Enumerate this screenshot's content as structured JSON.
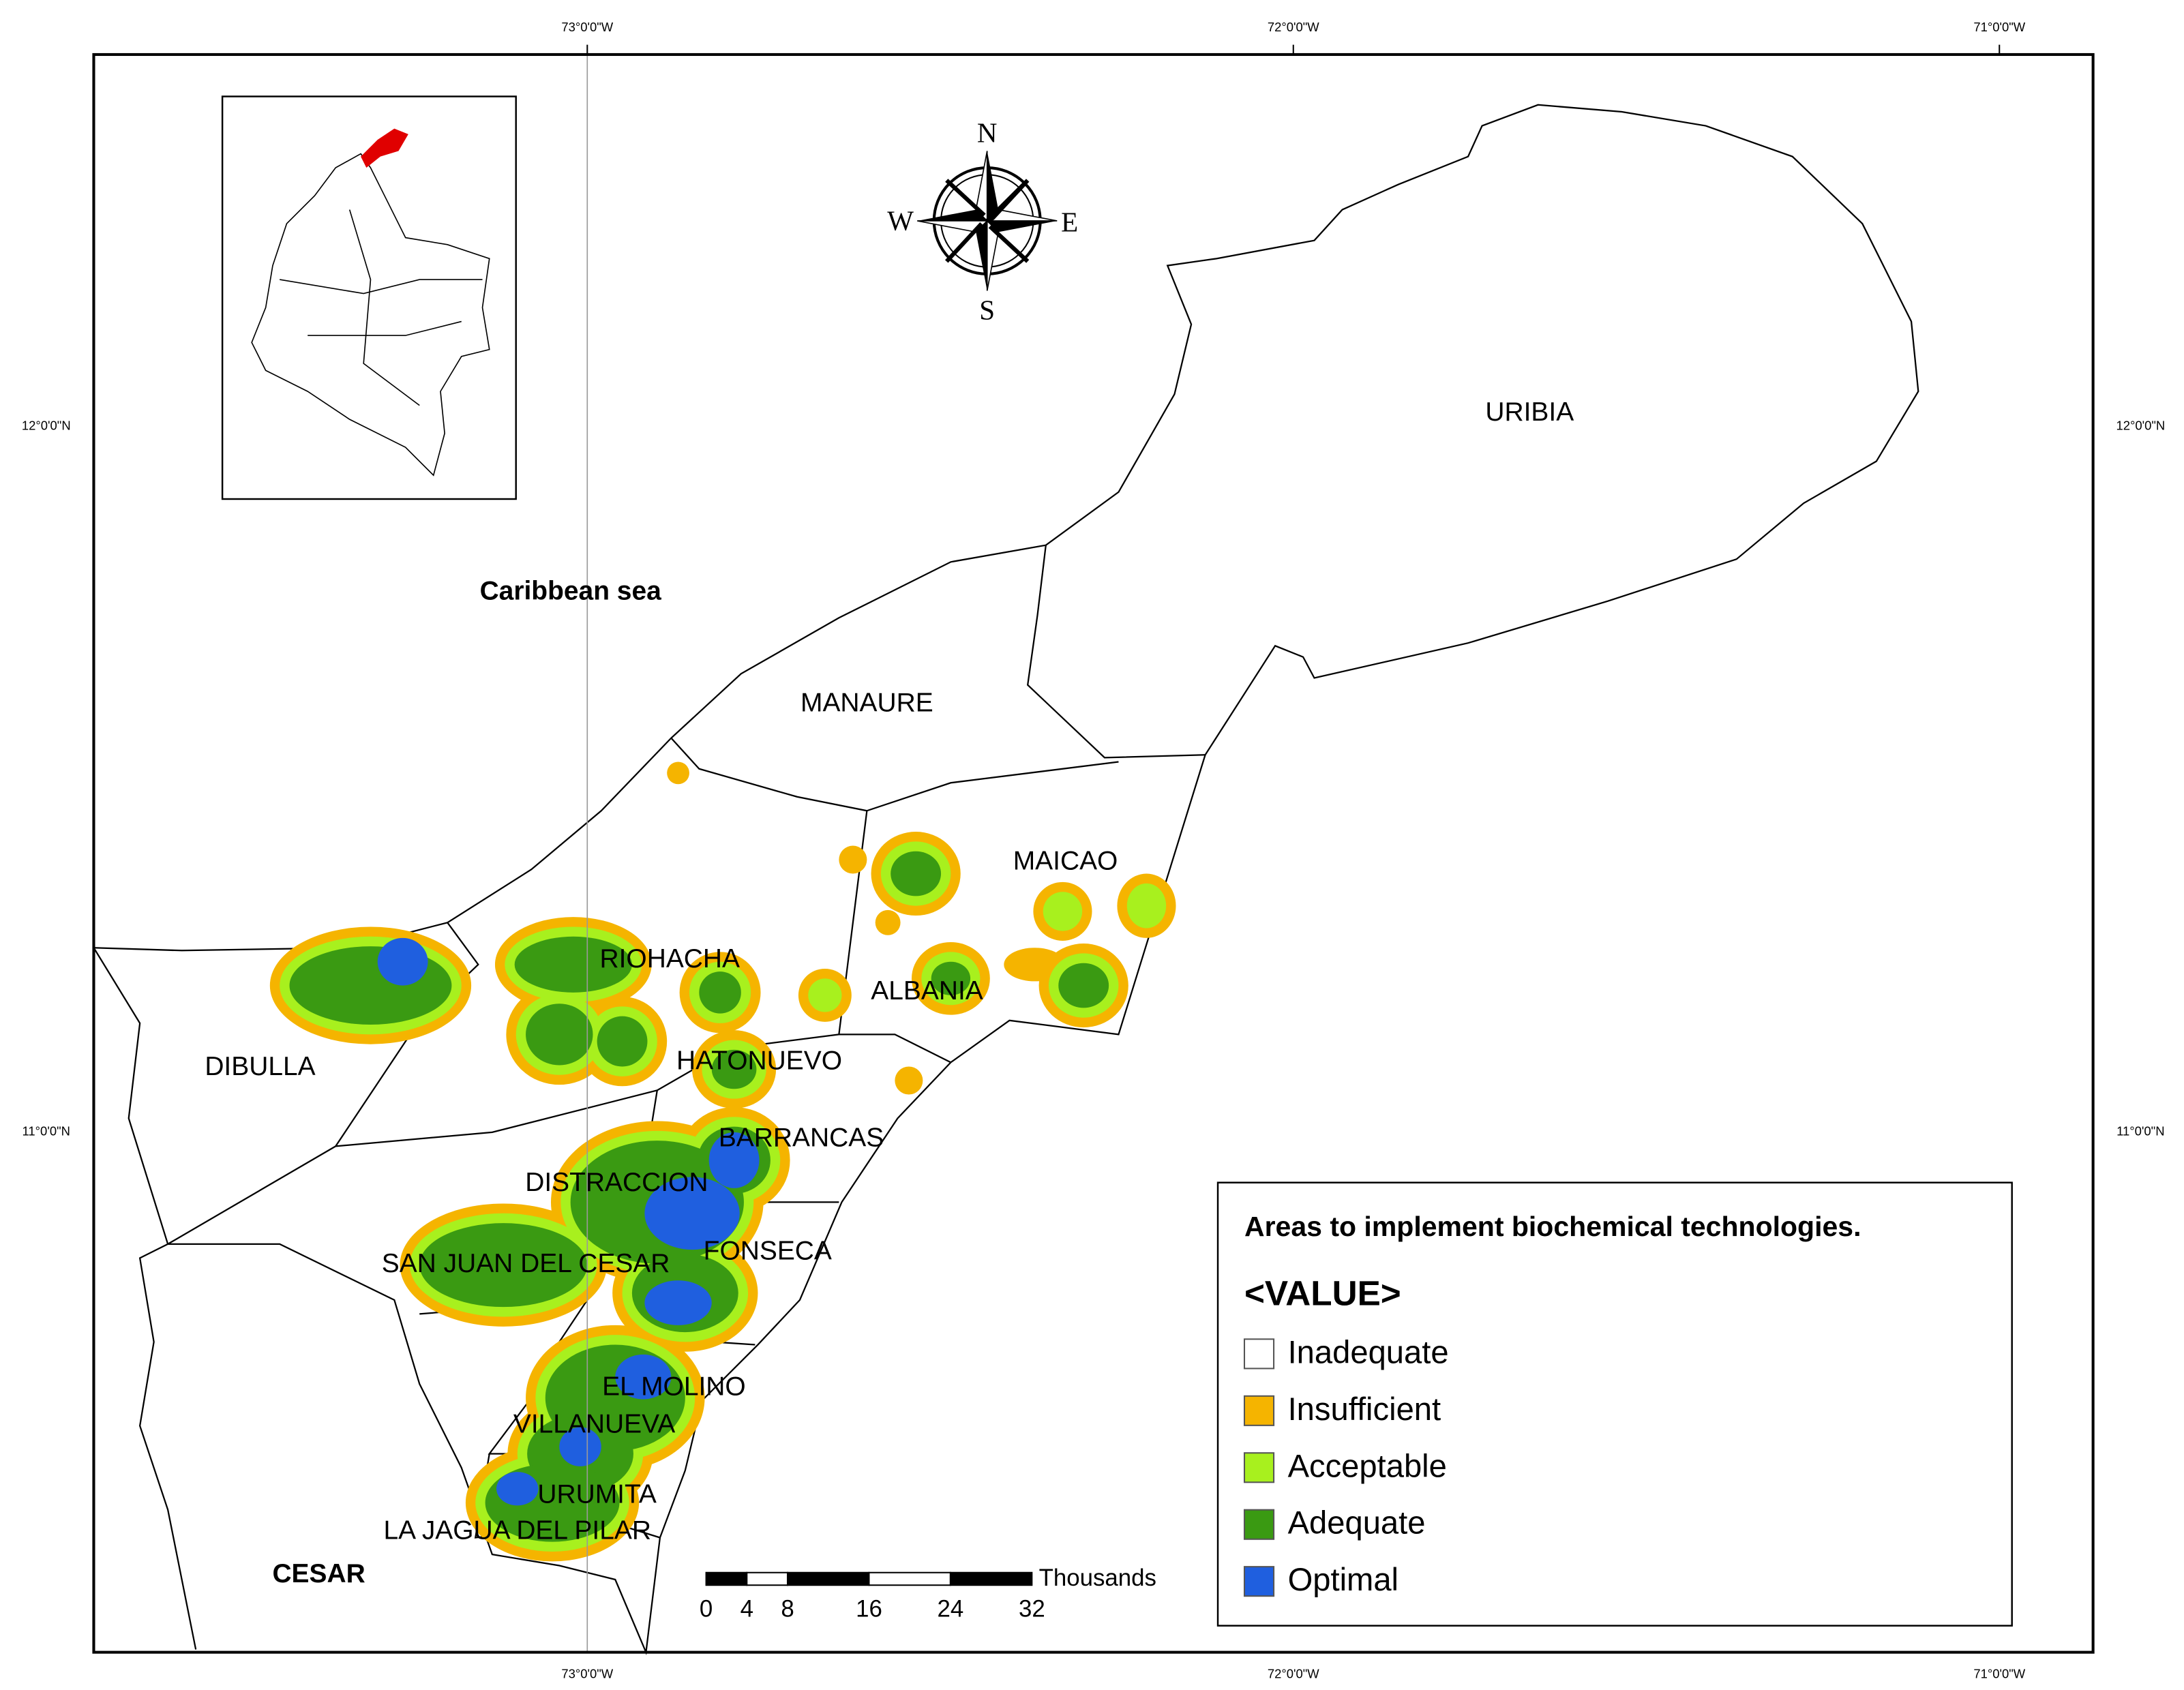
{
  "map": {
    "lon_labels": [
      "73°0'0\"W",
      "72°0'0\"W",
      "71°0'0\"W"
    ],
    "lat_labels": [
      "12°0'0\"N",
      "11°0'0\"N"
    ],
    "places": [
      "Caribbean sea",
      "URIBIA",
      "MANAURE",
      "MAICAO",
      "RIOHACHA",
      "ALBANIA",
      "DIBULLA",
      "HATONUEVO",
      "BARRANCAS",
      "DISTRACCION",
      "FONSECA",
      "SAN JUAN DEL CESAR",
      "EL MOLINO",
      "VILLANUEVA",
      "URUMITA",
      "LA JAGUA DEL PILAR",
      "CESAR"
    ],
    "compass": {
      "n": "N",
      "s": "S",
      "e": "E",
      "w": "W"
    },
    "scale_bar": {
      "ticks": [
        0,
        4,
        8,
        16,
        24,
        32
      ],
      "unit": "Thousands"
    },
    "legend": {
      "title": "Areas to implement biochemical technologies.",
      "field": "<VALUE>",
      "items": [
        {
          "label": "Inadequate",
          "color": "#ffffff"
        },
        {
          "label": "Insufficient",
          "color": "#f5b400"
        },
        {
          "label": "Acceptable",
          "color": "#a8f01e"
        },
        {
          "label": "Adequate",
          "color": "#3a9a12"
        },
        {
          "label": "Optimal",
          "color": "#1f5fdf"
        }
      ]
    }
  }
}
